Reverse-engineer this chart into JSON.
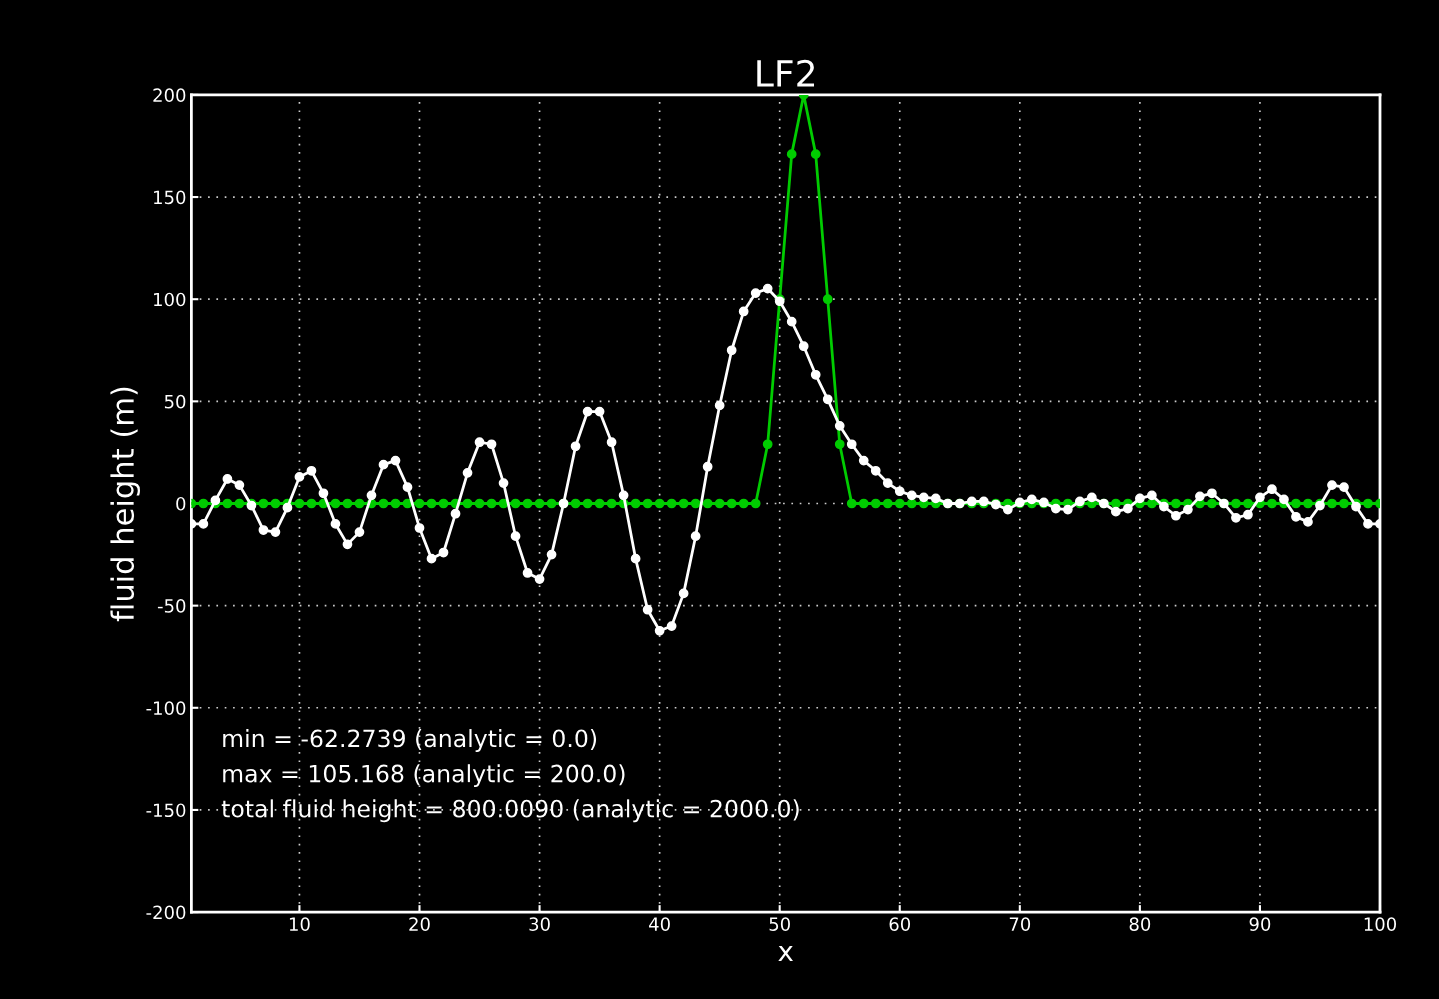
{
  "chart_data": {
    "type": "line",
    "title": "LF2",
    "xlabel": "x",
    "ylabel": "fluid height (m)",
    "x": [
      1,
      2,
      3,
      4,
      5,
      6,
      7,
      8,
      9,
      10,
      11,
      12,
      13,
      14,
      15,
      16,
      17,
      18,
      19,
      20,
      21,
      22,
      23,
      24,
      25,
      26,
      27,
      28,
      29,
      30,
      31,
      32,
      33,
      34,
      35,
      36,
      37,
      38,
      39,
      40,
      41,
      42,
      43,
      44,
      45,
      46,
      47,
      48,
      49,
      50,
      51,
      52,
      53,
      54,
      55,
      56,
      57,
      58,
      59,
      60,
      61,
      62,
      63,
      64,
      65,
      66,
      67,
      68,
      69,
      70,
      71,
      72,
      73,
      74,
      75,
      76,
      77,
      78,
      79,
      80,
      81,
      82,
      83,
      84,
      85,
      86,
      87,
      88,
      89,
      90,
      91,
      92,
      93,
      94,
      95,
      96,
      97,
      98,
      99,
      100
    ],
    "series": [
      {
        "color": "#ffffff",
        "values": [
          -10,
          -10,
          1.5,
          12,
          9,
          -1,
          -13,
          -14,
          -2,
          13,
          16,
          5,
          -10,
          -20,
          -14,
          4,
          19,
          21,
          8,
          -12,
          -27,
          -24,
          -5,
          15,
          30,
          29,
          10,
          -16,
          -34,
          -37,
          -25,
          0,
          28,
          45,
          45,
          30,
          4,
          -27,
          -52,
          -62.3,
          -60,
          -44,
          -16,
          18,
          48,
          75,
          94,
          103,
          105.2,
          99,
          89,
          77,
          63,
          51,
          38,
          29,
          21,
          16,
          10,
          6,
          4,
          3,
          2.5,
          0,
          0,
          1,
          1,
          -0.5,
          -3,
          0.5,
          2,
          0.5,
          -2.5,
          -3,
          1,
          3,
          0,
          -4,
          -2.5,
          2.5,
          4,
          -1.5,
          -6,
          -3,
          3.5,
          5,
          0,
          -7,
          -5.5,
          3,
          7,
          2,
          -6.5,
          -9,
          -1,
          9,
          8,
          -1.5,
          -10,
          -10
        ]
      },
      {
        "color": "#00cc00",
        "values": [
          0,
          0,
          0,
          0,
          0,
          0,
          0,
          0,
          0,
          0,
          0,
          0,
          0,
          0,
          0,
          0,
          0,
          0,
          0,
          0,
          0,
          0,
          0,
          0,
          0,
          0,
          0,
          0,
          0,
          0,
          0,
          0,
          0,
          0,
          0,
          0,
          0,
          0,
          0,
          0,
          0,
          0,
          0,
          0,
          0,
          0,
          0,
          0,
          29,
          100,
          171,
          200,
          171,
          100,
          29,
          0,
          0,
          0,
          0,
          0,
          0,
          0,
          0,
          0,
          0,
          0,
          0,
          0,
          0,
          0,
          0,
          0,
          0,
          0,
          0,
          0,
          0,
          0,
          0,
          0,
          0,
          0,
          0,
          0,
          0,
          0,
          0,
          0,
          0,
          0,
          0,
          0,
          0,
          0,
          0,
          0,
          0,
          0,
          0,
          0
        ]
      }
    ],
    "xlim": [
      1,
      100
    ],
    "xticks": [
      10,
      20,
      30,
      40,
      50,
      60,
      70,
      80,
      90,
      100
    ],
    "ylim": [
      -200,
      200
    ],
    "yticks": [
      {
        "value": -200,
        "label": "-200"
      },
      {
        "value": -150,
        "label": "-150"
      },
      {
        "value": -100,
        "label": "-100"
      },
      {
        "value": -50,
        "label": "-50"
      },
      0,
      50,
      100,
      150,
      200
    ],
    "grid": true,
    "marker": "circle",
    "line_style": "solid",
    "legend": false,
    "annotations": [
      "min = -62.2739 (analytic = 0.0)",
      "max = 105.168 (analytic = 200.0)",
      "total fluid height = 800.0090 (analytic = 2000.0)"
    ]
  }
}
